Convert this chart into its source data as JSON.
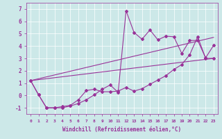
{
  "xlabel": "Windchill (Refroidissement éolien,°C)",
  "x_ticks": [
    0,
    1,
    2,
    3,
    4,
    5,
    6,
    7,
    8,
    9,
    10,
    11,
    12,
    13,
    14,
    15,
    16,
    17,
    18,
    19,
    20,
    21,
    22,
    23
  ],
  "ylim": [
    -1.5,
    7.5
  ],
  "xlim": [
    -0.5,
    23.5
  ],
  "yticks": [
    -1,
    0,
    1,
    2,
    3,
    4,
    5,
    6,
    7
  ],
  "bg_color": "#cce8e8",
  "line_color": "#993399",
  "series1_x": [
    0,
    1,
    2,
    3,
    4,
    5,
    6,
    7,
    8,
    9,
    10,
    11,
    12,
    13,
    14,
    15,
    16,
    17,
    18,
    19,
    20,
    21,
    22,
    23
  ],
  "series1_y": [
    1.2,
    0.05,
    -1.0,
    -1.0,
    -1.0,
    -0.85,
    -0.65,
    -0.35,
    0.05,
    0.5,
    0.85,
    0.25,
    6.85,
    5.1,
    4.55,
    5.3,
    4.5,
    4.8,
    4.75,
    3.4,
    4.45,
    4.45,
    3.05,
    4.05
  ],
  "series2_x": [
    0,
    1,
    2,
    3,
    4,
    5,
    6,
    7,
    8,
    9,
    10,
    11,
    12,
    13,
    14,
    15,
    16,
    17,
    18,
    19,
    20,
    21,
    22,
    23
  ],
  "series2_y": [
    1.2,
    0.05,
    -1.0,
    -1.0,
    -0.9,
    -0.8,
    -0.35,
    0.4,
    0.5,
    0.3,
    0.3,
    0.35,
    0.65,
    0.35,
    0.55,
    0.9,
    1.25,
    1.6,
    2.1,
    2.5,
    3.3,
    4.75,
    3.0,
    3.0
  ],
  "series3_x": [
    0,
    23
  ],
  "series3_y": [
    1.2,
    4.7
  ],
  "series4_x": [
    0,
    23
  ],
  "series4_y": [
    1.2,
    3.0
  ]
}
